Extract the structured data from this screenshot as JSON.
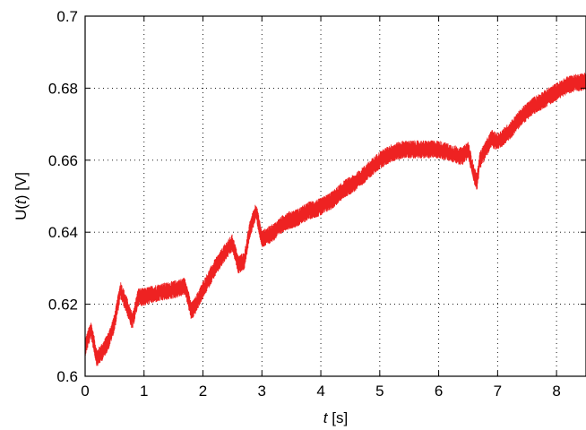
{
  "chart_data": {
    "type": "line",
    "title": "",
    "xlabel": {
      "var": "t",
      "unit": "[s]"
    },
    "ylabel": {
      "prefix": "U(",
      "var": "t",
      "suffix": ") [V]"
    },
    "xlim": [
      0,
      8.5
    ],
    "ylim": [
      0.6,
      0.7
    ],
    "xticks": [
      0,
      1,
      2,
      3,
      4,
      5,
      6,
      7,
      8
    ],
    "yticks": [
      0.6,
      0.62,
      0.64,
      0.66,
      0.68,
      0.7
    ],
    "xtick_labels": [
      "0",
      "1",
      "2",
      "3",
      "4",
      "5",
      "6",
      "7",
      "8"
    ],
    "ytick_labels": [
      "0.6",
      "0.62",
      "0.64",
      "0.66",
      "0.68",
      "0.7"
    ],
    "grid": true,
    "legend": "none",
    "series": [
      {
        "color": "#ee2222",
        "noise_amplitude": 0.0022,
        "x": [
          0,
          0.1,
          0.2,
          0.3,
          0.4,
          0.5,
          0.6,
          0.7,
          0.8,
          0.9,
          1.0,
          1.2,
          1.5,
          1.7,
          1.8,
          1.85,
          2.0,
          2.2,
          2.4,
          2.5,
          2.6,
          2.7,
          2.8,
          2.9,
          3.0,
          3.1,
          3.2,
          3.4,
          3.6,
          3.8,
          4.0,
          4.2,
          4.4,
          4.6,
          4.8,
          5.0,
          5.2,
          5.4,
          5.6,
          5.8,
          6.0,
          6.2,
          6.4,
          6.5,
          6.6,
          6.65,
          6.7,
          6.9,
          7.0,
          7.2,
          7.4,
          7.6,
          7.8,
          8.0,
          8.2,
          8.5
        ],
        "values": [
          0.608,
          0.613,
          0.605,
          0.607,
          0.61,
          0.615,
          0.624,
          0.62,
          0.615,
          0.622,
          0.622,
          0.623,
          0.624,
          0.625,
          0.618,
          0.619,
          0.624,
          0.63,
          0.635,
          0.637,
          0.631,
          0.632,
          0.641,
          0.646,
          0.638,
          0.639,
          0.64,
          0.643,
          0.644,
          0.646,
          0.647,
          0.649,
          0.652,
          0.654,
          0.657,
          0.66,
          0.662,
          0.663,
          0.663,
          0.663,
          0.663,
          0.662,
          0.661,
          0.663,
          0.656,
          0.654,
          0.66,
          0.666,
          0.665,
          0.668,
          0.672,
          0.675,
          0.677,
          0.679,
          0.681,
          0.682
        ]
      }
    ]
  }
}
